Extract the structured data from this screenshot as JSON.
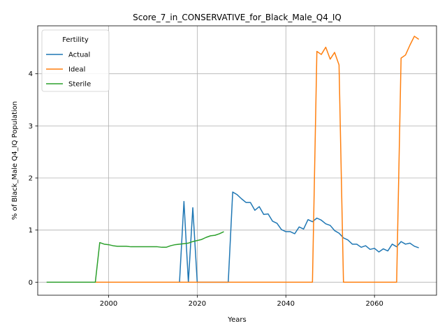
{
  "chart_data": {
    "type": "line",
    "title": "Score_7_in_CONSERVATIVE_for_Black_Male_Q4_IQ",
    "xlabel": "Years",
    "ylabel": "% of Black_Male Q4_IQ Population",
    "xlim": [
      1984,
      2074
    ],
    "ylim": [
      -0.25,
      4.92
    ],
    "xticks": [
      2000,
      2020,
      2040,
      2060
    ],
    "yticks": [
      0,
      1,
      2,
      3,
      4
    ],
    "grid": true,
    "legend": {
      "title": "Fertility",
      "position": "top-left"
    },
    "series": [
      {
        "name": "Actual",
        "color": "#1f77b4",
        "points": [
          [
            2016,
            0.0
          ],
          [
            2017,
            1.55
          ],
          [
            2018,
            0.0
          ],
          [
            2019,
            1.43
          ],
          [
            2020,
            0.0
          ],
          [
            2021,
            0.0
          ],
          [
            2027,
            0.0
          ],
          [
            2028,
            1.73
          ],
          [
            2029,
            1.68
          ],
          [
            2030,
            1.6
          ],
          [
            2031,
            1.53
          ],
          [
            2032,
            1.53
          ],
          [
            2033,
            1.38
          ],
          [
            2034,
            1.45
          ],
          [
            2035,
            1.3
          ],
          [
            2036,
            1.31
          ],
          [
            2037,
            1.17
          ],
          [
            2038,
            1.13
          ],
          [
            2039,
            1.01
          ],
          [
            2040,
            0.97
          ],
          [
            2041,
            0.97
          ],
          [
            2042,
            0.93
          ],
          [
            2043,
            1.06
          ],
          [
            2044,
            1.02
          ],
          [
            2045,
            1.2
          ],
          [
            2046,
            1.16
          ],
          [
            2047,
            1.23
          ],
          [
            2048,
            1.19
          ],
          [
            2049,
            1.12
          ],
          [
            2050,
            1.09
          ],
          [
            2051,
            0.99
          ],
          [
            2052,
            0.94
          ],
          [
            2053,
            0.85
          ],
          [
            2054,
            0.81
          ],
          [
            2055,
            0.73
          ],
          [
            2056,
            0.73
          ],
          [
            2057,
            0.67
          ],
          [
            2058,
            0.7
          ],
          [
            2059,
            0.63
          ],
          [
            2060,
            0.65
          ],
          [
            2061,
            0.58
          ],
          [
            2062,
            0.64
          ],
          [
            2063,
            0.6
          ],
          [
            2064,
            0.73
          ],
          [
            2065,
            0.68
          ],
          [
            2066,
            0.78
          ],
          [
            2067,
            0.73
          ],
          [
            2068,
            0.75
          ],
          [
            2069,
            0.69
          ],
          [
            2070,
            0.66
          ]
        ]
      },
      {
        "name": "Ideal",
        "color": "#ff7f0e",
        "points": [
          [
            1997,
            0.0
          ],
          [
            2000,
            0.0
          ],
          [
            2010,
            0.0
          ],
          [
            2020,
            0.0
          ],
          [
            2030,
            0.0
          ],
          [
            2040,
            0.0
          ],
          [
            2046,
            0.0
          ],
          [
            2047,
            4.43
          ],
          [
            2048,
            4.37
          ],
          [
            2049,
            4.51
          ],
          [
            2050,
            4.28
          ],
          [
            2051,
            4.41
          ],
          [
            2052,
            4.17
          ],
          [
            2053,
            0.0
          ],
          [
            2060,
            0.0
          ],
          [
            2065,
            0.0
          ],
          [
            2066,
            4.3
          ],
          [
            2067,
            4.36
          ],
          [
            2068,
            4.55
          ],
          [
            2069,
            4.72
          ],
          [
            2070,
            4.66
          ]
        ]
      },
      {
        "name": "Sterile",
        "color": "#2ca02c",
        "points": [
          [
            1986,
            0.0
          ],
          [
            1990,
            0.0
          ],
          [
            1995,
            0.0
          ],
          [
            1997,
            0.0
          ],
          [
            1998,
            0.76
          ],
          [
            1999,
            0.73
          ],
          [
            2000,
            0.72
          ],
          [
            2001,
            0.7
          ],
          [
            2002,
            0.69
          ],
          [
            2003,
            0.69
          ],
          [
            2004,
            0.69
          ],
          [
            2005,
            0.68
          ],
          [
            2006,
            0.68
          ],
          [
            2007,
            0.68
          ],
          [
            2008,
            0.68
          ],
          [
            2009,
            0.68
          ],
          [
            2010,
            0.68
          ],
          [
            2011,
            0.68
          ],
          [
            2012,
            0.67
          ],
          [
            2013,
            0.67
          ],
          [
            2014,
            0.7
          ],
          [
            2015,
            0.72
          ],
          [
            2016,
            0.73
          ],
          [
            2017,
            0.74
          ],
          [
            2018,
            0.75
          ],
          [
            2019,
            0.78
          ],
          [
            2020,
            0.8
          ],
          [
            2021,
            0.82
          ],
          [
            2022,
            0.86
          ],
          [
            2023,
            0.89
          ],
          [
            2024,
            0.9
          ],
          [
            2025,
            0.93
          ],
          [
            2026,
            0.97
          ]
        ]
      }
    ]
  }
}
